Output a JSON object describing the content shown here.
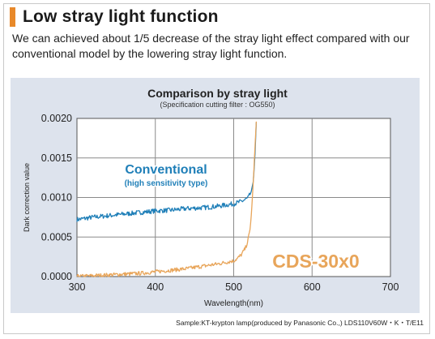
{
  "heading": {
    "title": "Low stray light function",
    "accent": "#e8892a"
  },
  "description": "We can achieved about 1/5 decrease of the stray light effect compared with our conventional model by the lowering stray light function.",
  "caption": "Sample:KT-krypton lamp(produced by Panasonic Co.,) LDS110V60W・K・T/E11",
  "chart_data": {
    "type": "line",
    "title": "Comparison by stray light",
    "subtitle": "(Specification cutting filter : OG550)",
    "xlabel": "Wavelength(nm)",
    "ylabel": "Dark correction value",
    "xlim": [
      300,
      700
    ],
    "ylim": [
      0,
      0.002
    ],
    "xticks": [
      "300",
      "400",
      "500",
      "600",
      "700"
    ],
    "yticks": [
      "0.0000",
      "0.0005",
      "0.0010",
      "0.0015",
      "0.0020"
    ],
    "grid": true,
    "series": [
      {
        "name": "Conventional",
        "sublabel": "(high sensitivity type)",
        "color": "#1f7fb8",
        "x": [
          300,
          320,
          340,
          360,
          380,
          400,
          420,
          440,
          460,
          480,
          500,
          510,
          518,
          522,
          525,
          527,
          529
        ],
        "y": [
          0.00072,
          0.00075,
          0.00077,
          0.00079,
          0.00081,
          0.00083,
          0.00084,
          0.00086,
          0.00087,
          0.00089,
          0.00092,
          0.00095,
          0.00099,
          0.00106,
          0.0012,
          0.0015,
          0.002
        ]
      },
      {
        "name": "CDS-30x0",
        "color": "#e8a55a",
        "x": [
          300,
          320,
          340,
          360,
          380,
          400,
          420,
          440,
          460,
          480,
          490,
          500,
          505,
          510,
          515,
          518,
          521,
          523,
          525,
          527,
          529
        ],
        "y": [
          0.0,
          1e-05,
          2e-05,
          3e-05,
          4e-05,
          6e-05,
          8e-05,
          0.0001,
          0.00013,
          0.00016,
          0.00018,
          0.0002,
          0.00023,
          0.00028,
          0.00036,
          0.00045,
          0.0006,
          0.00085,
          0.0012,
          0.0016,
          0.002
        ]
      }
    ]
  }
}
